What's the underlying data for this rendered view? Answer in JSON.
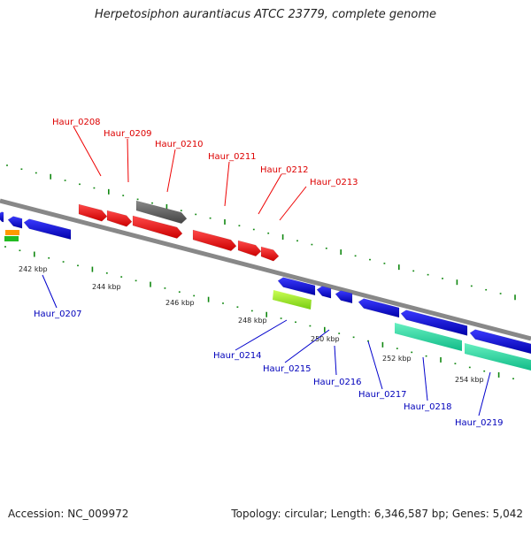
{
  "title": "Herpetosiphon aurantiacus ATCC 23779, complete genome",
  "footer": {
    "accession": "Accession: NC_009972",
    "summary": "Topology: circular; Length: 6,346,587 bp; Genes: 5,042"
  },
  "colors": {
    "forward_gene": "#ee0000",
    "reverse_gene": "#0000dd",
    "pseudo_gene": "#666666",
    "rna_gene": "#33ddaa",
    "lime_gene": "#99ee22",
    "orange_gene": "#ff9900",
    "green_gene": "#22bb22",
    "backbone": "#888888",
    "forward_label": "#dd0000",
    "reverse_label": "#0000bb",
    "tick": "#118811"
  },
  "scale_labels": [
    "242 kbp",
    "244 kbp",
    "246 kbp",
    "248 kbp",
    "250 kbp",
    "252 kbp",
    "254 kbp"
  ],
  "forward_labels": [
    "Haur_0208",
    "Haur_0209",
    "Haur_0210",
    "Haur_0211",
    "Haur_0212",
    "Haur_0213"
  ],
  "reverse_labels": [
    "Haur_0207",
    "Haur_0214",
    "Haur_0215",
    "Haur_0216",
    "Haur_0217",
    "Haur_0218",
    "Haur_0219"
  ]
}
